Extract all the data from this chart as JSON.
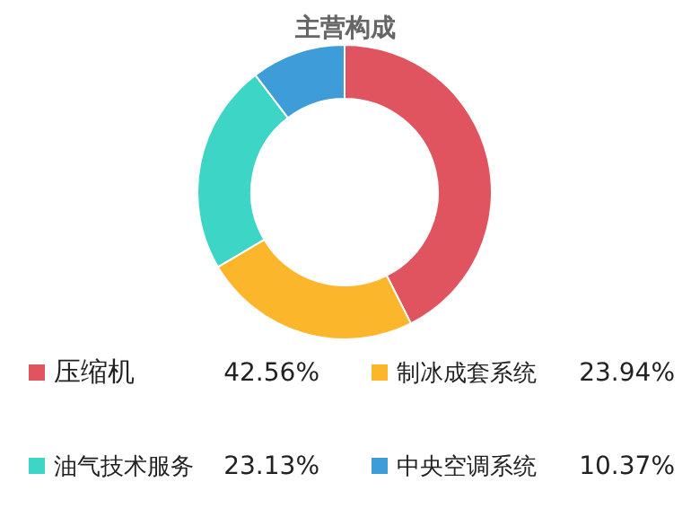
{
  "chart_data": {
    "type": "donut",
    "title": "主营构成",
    "categories": [
      "压缩机",
      "制冰成套系统",
      "油气技术服务",
      "中央空调系统"
    ],
    "values": [
      42.56,
      23.94,
      23.13,
      10.37
    ],
    "colors": [
      "#e0545f",
      "#fbb62b",
      "#3dd5c6",
      "#3e9cd8"
    ],
    "value_labels": [
      "42.56%",
      "23.94%",
      "23.13%",
      "10.37%"
    ],
    "legend": "bottom"
  }
}
